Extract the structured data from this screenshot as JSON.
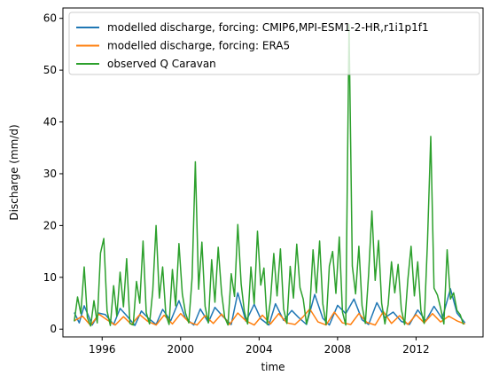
{
  "chart_data": {
    "type": "line",
    "xlabel": "time",
    "ylabel": "Discharge (mm/d)",
    "xlim": [
      "1994-01-01",
      "2015-06-01"
    ],
    "ylim": [
      -1.5,
      62
    ],
    "x_ticks": [
      "1996",
      "2000",
      "2004",
      "2008",
      "2012"
    ],
    "y_ticks": [
      0,
      10,
      20,
      30,
      40,
      50,
      60
    ],
    "grid": false,
    "legend_position": "top-right",
    "series": [
      {
        "name": "modelled discharge, forcing: CMIP6,MPI-ESM1-2-HR,r1i1p1f1",
        "color": "#1f77b4",
        "x": [
          "1994-08",
          "1994-11",
          "1995-02",
          "1995-07",
          "1995-11",
          "1996-03",
          "1996-08",
          "1996-12",
          "1997-04",
          "1997-09",
          "1998-01",
          "1998-05",
          "1998-10",
          "1999-02",
          "1999-07",
          "1999-12",
          "2000-04",
          "2000-09",
          "2001-01",
          "2001-06",
          "2001-10",
          "2002-03",
          "2002-08",
          "2002-12",
          "2003-05",
          "2003-10",
          "2004-02",
          "2004-07",
          "2004-11",
          "2005-04",
          "2005-09",
          "2006-01",
          "2006-06",
          "2006-11",
          "2007-04",
          "2007-08",
          "2008-01",
          "2008-06",
          "2008-11",
          "2009-04",
          "2009-08",
          "2010-01",
          "2010-06",
          "2010-11",
          "2011-04",
          "2011-09",
          "2012-02",
          "2012-07",
          "2012-12",
          "2013-05",
          "2013-10",
          "2014-02",
          "2014-07"
        ],
        "y": [
          3.2,
          1.2,
          4.5,
          0.8,
          3.1,
          2.8,
          0.9,
          4.0,
          2.6,
          0.7,
          3.5,
          2.2,
          0.9,
          3.8,
          1.6,
          5.5,
          2.1,
          0.8,
          3.9,
          1.3,
          4.2,
          2.4,
          0.9,
          7.0,
          1.5,
          4.8,
          2.0,
          0.8,
          4.9,
          1.7,
          3.6,
          2.3,
          0.9,
          6.7,
          2.1,
          0.8,
          4.6,
          3.0,
          5.8,
          1.8,
          0.9,
          5.1,
          2.2,
          3.3,
          1.5,
          0.9,
          3.7,
          1.6,
          4.4,
          2.0,
          7.8,
          3.1,
          1.2
        ]
      },
      {
        "name": "modelled discharge, forcing: ERA5",
        "color": "#ff7f0e",
        "x": [
          "1994-08",
          "1995-01",
          "1995-06",
          "1995-11",
          "1996-04",
          "1996-09",
          "1997-02",
          "1997-07",
          "1997-12",
          "1998-05",
          "1998-10",
          "1999-03",
          "1999-08",
          "2000-01",
          "2000-06",
          "2000-11",
          "2001-04",
          "2001-09",
          "2002-02",
          "2002-07",
          "2002-12",
          "2003-05",
          "2003-10",
          "2004-03",
          "2004-08",
          "2005-01",
          "2005-06",
          "2005-11",
          "2006-04",
          "2006-08",
          "2007-01",
          "2007-06",
          "2007-11",
          "2008-04",
          "2008-09",
          "2009-02",
          "2009-07",
          "2009-12",
          "2010-05",
          "2010-10",
          "2011-03",
          "2011-08",
          "2012-01",
          "2012-06",
          "2012-11",
          "2013-04",
          "2013-09",
          "2014-02",
          "2014-07"
        ],
        "y": [
          1.6,
          2.5,
          0.7,
          2.9,
          1.8,
          0.8,
          2.4,
          0.9,
          2.8,
          1.5,
          0.8,
          2.7,
          1.0,
          3.0,
          1.4,
          0.8,
          2.6,
          1.1,
          2.9,
          0.9,
          3.1,
          1.6,
          0.8,
          2.7,
          1.0,
          3.0,
          1.2,
          0.9,
          2.4,
          3.9,
          1.4,
          0.8,
          3.3,
          1.2,
          0.9,
          3.0,
          1.3,
          0.8,
          3.4,
          1.1,
          2.6,
          0.9,
          2.8,
          1.2,
          3.0,
          1.4,
          2.5,
          1.6,
          1.0
        ]
      },
      {
        "name": "observed Q Caravan",
        "color": "#2ca02c",
        "x": [
          "1994-08",
          "1994-10",
          "1994-12",
          "1995-02",
          "1995-04",
          "1995-06",
          "1995-08",
          "1995-10",
          "1995-12",
          "1996-02",
          "1996-04",
          "1996-06",
          "1996-08",
          "1996-10",
          "1996-12",
          "1997-02",
          "1997-04",
          "1997-06",
          "1997-08",
          "1997-10",
          "1997-12",
          "1998-02",
          "1998-04",
          "1998-06",
          "1998-08",
          "1998-10",
          "1998-12",
          "1999-02",
          "1999-04",
          "1999-06",
          "1999-08",
          "1999-10",
          "1999-12",
          "2000-02",
          "2000-04",
          "2000-06",
          "2000-08",
          "2000-10",
          "2000-12",
          "2001-02",
          "2001-04",
          "2001-06",
          "2001-08",
          "2001-10",
          "2001-12",
          "2002-02",
          "2002-04",
          "2002-06",
          "2002-08",
          "2002-10",
          "2002-12",
          "2003-02",
          "2003-04",
          "2003-06",
          "2003-08",
          "2003-10",
          "2003-12",
          "2004-02",
          "2004-04",
          "2004-06",
          "2004-08",
          "2004-10",
          "2004-12",
          "2005-02",
          "2005-04",
          "2005-06",
          "2005-08",
          "2005-10",
          "2005-12",
          "2006-02",
          "2006-04",
          "2006-06",
          "2006-08",
          "2006-10",
          "2006-12",
          "2007-02",
          "2007-04",
          "2007-06",
          "2007-08",
          "2007-10",
          "2007-12",
          "2008-02",
          "2008-04",
          "2008-06",
          "2008-08",
          "2008-10",
          "2008-12",
          "2009-02",
          "2009-04",
          "2009-06",
          "2009-08",
          "2009-10",
          "2009-12",
          "2010-02",
          "2010-04",
          "2010-06",
          "2010-08",
          "2010-10",
          "2010-12",
          "2011-02",
          "2011-04",
          "2011-06",
          "2011-08",
          "2011-10",
          "2011-12",
          "2012-02",
          "2012-04",
          "2012-06",
          "2012-08",
          "2012-10",
          "2012-12",
          "2013-02",
          "2013-04",
          "2013-06",
          "2013-08",
          "2013-10",
          "2013-12",
          "2014-02",
          "2014-04",
          "2014-06"
        ],
        "y": [
          1.5,
          6.2,
          3.0,
          12.0,
          2.2,
          0.6,
          5.5,
          1.2,
          14.7,
          17.5,
          3.5,
          0.7,
          8.4,
          2.5,
          11.0,
          4.3,
          13.6,
          1.1,
          0.8,
          9.2,
          5.0,
          17.0,
          3.2,
          1.0,
          7.5,
          20.0,
          6.0,
          12.0,
          2.8,
          0.9,
          11.5,
          4.5,
          16.5,
          6.8,
          3.1,
          1.2,
          9.8,
          32.3,
          7.7,
          16.8,
          4.4,
          1.2,
          13.4,
          5.2,
          15.8,
          7.0,
          2.3,
          0.8,
          10.7,
          6.3,
          20.2,
          8.7,
          3.4,
          1.0,
          12.0,
          4.9,
          18.9,
          8.5,
          11.8,
          0.9,
          5.6,
          14.6,
          6.4,
          15.5,
          3.9,
          1.1,
          12.1,
          6.0,
          16.4,
          8.0,
          5.8,
          1.0,
          3.7,
          15.3,
          7.0,
          17.0,
          4.9,
          0.9,
          12.2,
          15.0,
          6.9,
          17.8,
          3.3,
          0.8,
          58.8,
          12.2,
          6.8,
          16.0,
          4.5,
          1.1,
          10.6,
          22.8,
          9.4,
          17.1,
          5.0,
          1.0,
          4.8,
          13.0,
          7.0,
          12.5,
          3.8,
          0.9,
          9.6,
          16.0,
          6.4,
          13.0,
          3.6,
          1.1,
          16.8,
          37.2,
          7.9,
          6.6,
          4.1,
          1.0,
          15.3,
          5.8,
          7.0,
          3.6,
          2.8,
          0.9
        ]
      }
    ]
  }
}
